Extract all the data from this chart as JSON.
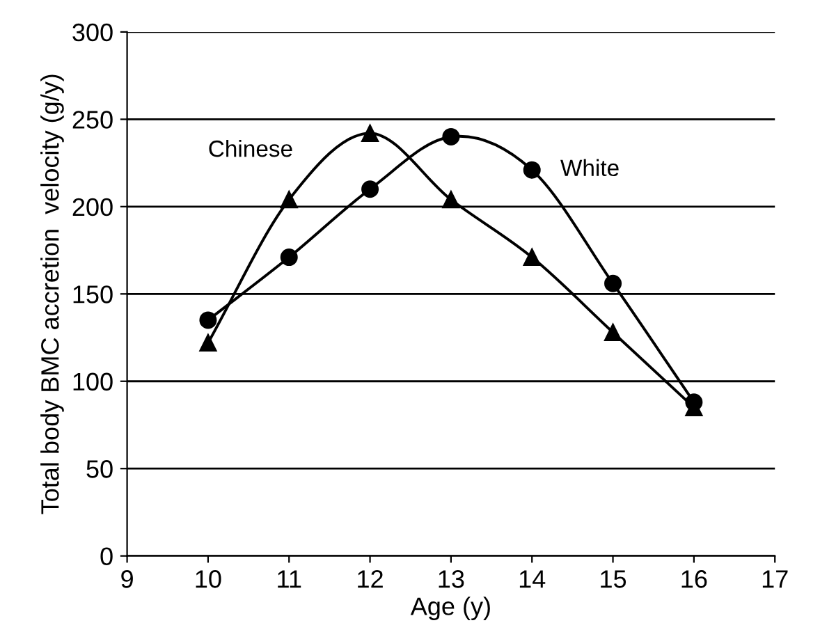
{
  "chart_data": {
    "type": "line",
    "xlabel": "Age (y)",
    "ylabel": "Total body BMC accretion  velocity (g/y)",
    "x": [
      10,
      11,
      12,
      13,
      14,
      15,
      16
    ],
    "series": [
      {
        "name": "Chinese",
        "color": "#000000",
        "marker": "triangle",
        "values": [
          122,
          204,
          242,
          204,
          171,
          128,
          85
        ]
      },
      {
        "name": "White",
        "color": "#000000",
        "marker": "circle",
        "values": [
          135,
          171,
          210,
          240,
          221,
          156,
          88
        ]
      }
    ],
    "xlim": [
      9,
      17
    ],
    "xticks": [
      9,
      10,
      11,
      12,
      13,
      14,
      15,
      16,
      17
    ],
    "ylim": [
      0,
      300
    ],
    "yticks": [
      0,
      50,
      100,
      150,
      200,
      250,
      300
    ],
    "grid": "y",
    "legend": false,
    "line_style": "solid"
  }
}
